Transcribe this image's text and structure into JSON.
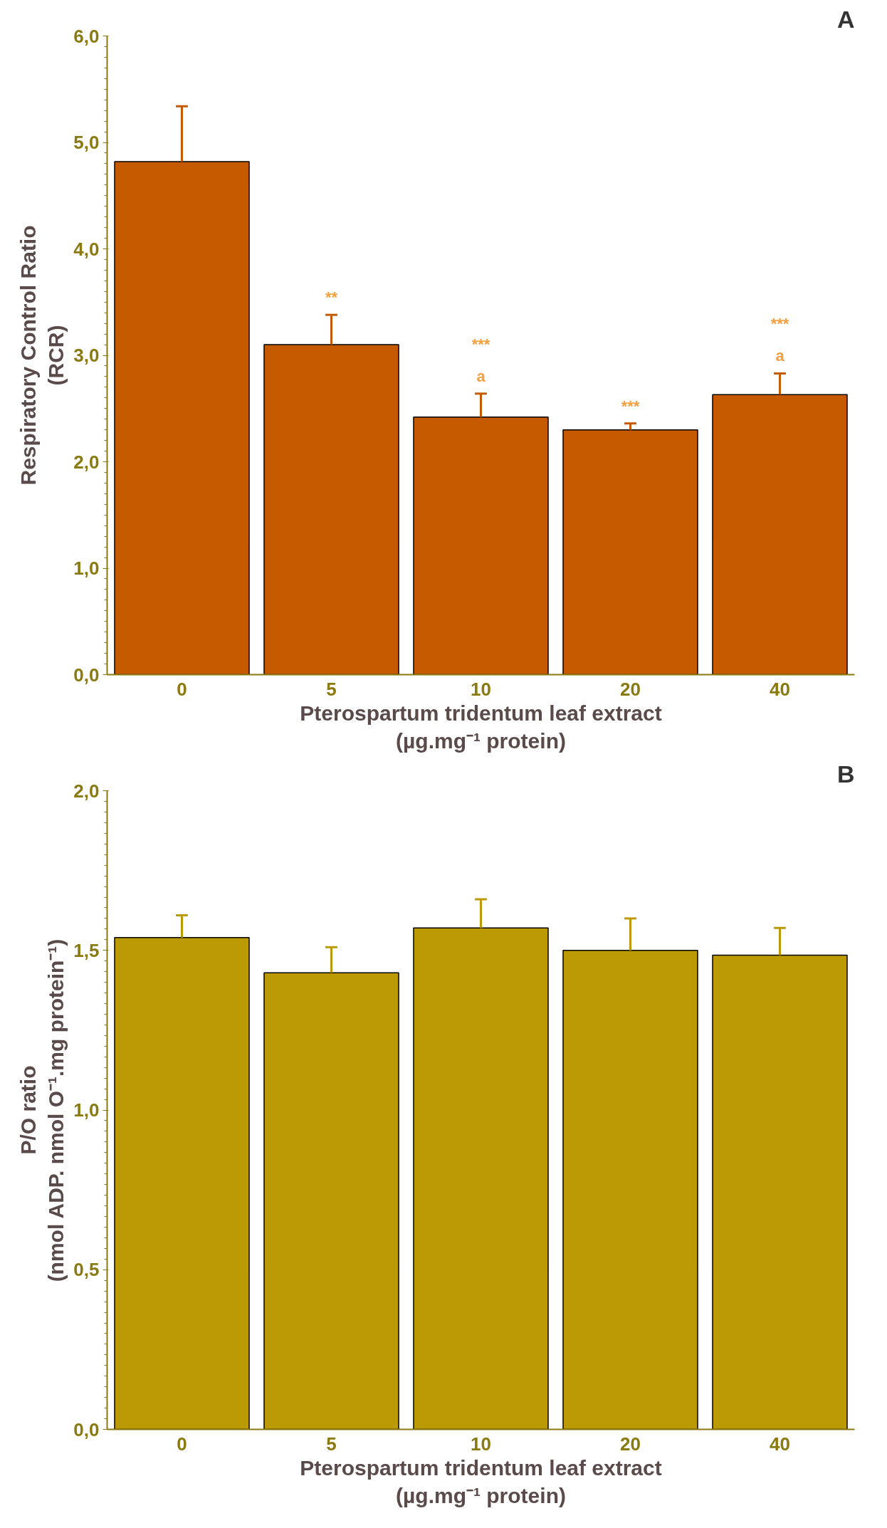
{
  "chart_data": [
    {
      "type": "bar",
      "title": "A",
      "categories": [
        "0",
        "5",
        "10",
        "20",
        "40"
      ],
      "values": [
        4.82,
        3.1,
        2.42,
        2.3,
        2.63
      ],
      "errors": [
        [
          4.82,
          5.34
        ],
        [
          3.1,
          3.38
        ],
        [
          2.42,
          2.64
        ],
        [
          2.3,
          2.36
        ],
        [
          2.63,
          2.83
        ]
      ],
      "color": "#c55a00",
      "xlabel": "Pterospartum tridentum leaf extract\n(µg.mg⁻¹ protein)",
      "ylabel": "Respiratory Control Ratio\n(RCR)",
      "ylim": [
        0,
        6
      ],
      "yticks": [
        {
          "value": 0,
          "label": "0,0"
        },
        {
          "value": 1,
          "label": "1,0"
        },
        {
          "value": 2,
          "label": "2,0"
        },
        {
          "value": 3,
          "label": "3,0"
        },
        {
          "value": 4,
          "label": "4,0"
        },
        {
          "value": 5,
          "label": "5,0"
        },
        {
          "value": 6,
          "label": "6,0"
        }
      ],
      "annotations": [
        {
          "text": "**",
          "x": "5",
          "y": 3.38
        },
        {
          "text": "***\na",
          "x": "10",
          "y": 2.64
        },
        {
          "text": "***",
          "x": "20",
          "y": 2.36
        },
        {
          "text": "***\na",
          "x": "40",
          "y": 2.83
        }
      ],
      "grid": false
    },
    {
      "type": "bar",
      "title": "B",
      "categories": [
        "0",
        "5",
        "10",
        "20",
        "40"
      ],
      "values": [
        1.54,
        1.43,
        1.57,
        1.5,
        1.485
      ],
      "errors": [
        [
          1.54,
          1.61
        ],
        [
          1.43,
          1.51
        ],
        [
          1.57,
          1.66
        ],
        [
          1.5,
          1.6
        ],
        [
          1.485,
          1.57
        ]
      ],
      "color": "#bb9a06",
      "xlabel": "Pterospartum tridentum leaf extract\n(µg.mg⁻¹ protein)",
      "ylabel": "P/O ratio\n(nmol ADP. nmol O⁻¹.mg protein⁻¹)",
      "ylim": [
        0,
        2
      ],
      "yticks": [
        {
          "value": 0,
          "label": "0,0"
        },
        {
          "value": 0.5,
          "label": "0,5"
        },
        {
          "value": 1,
          "label": "1,0"
        },
        {
          "value": 1.5,
          "label": "1,5"
        },
        {
          "value": 2,
          "label": "2,0"
        }
      ],
      "grid": false
    }
  ]
}
